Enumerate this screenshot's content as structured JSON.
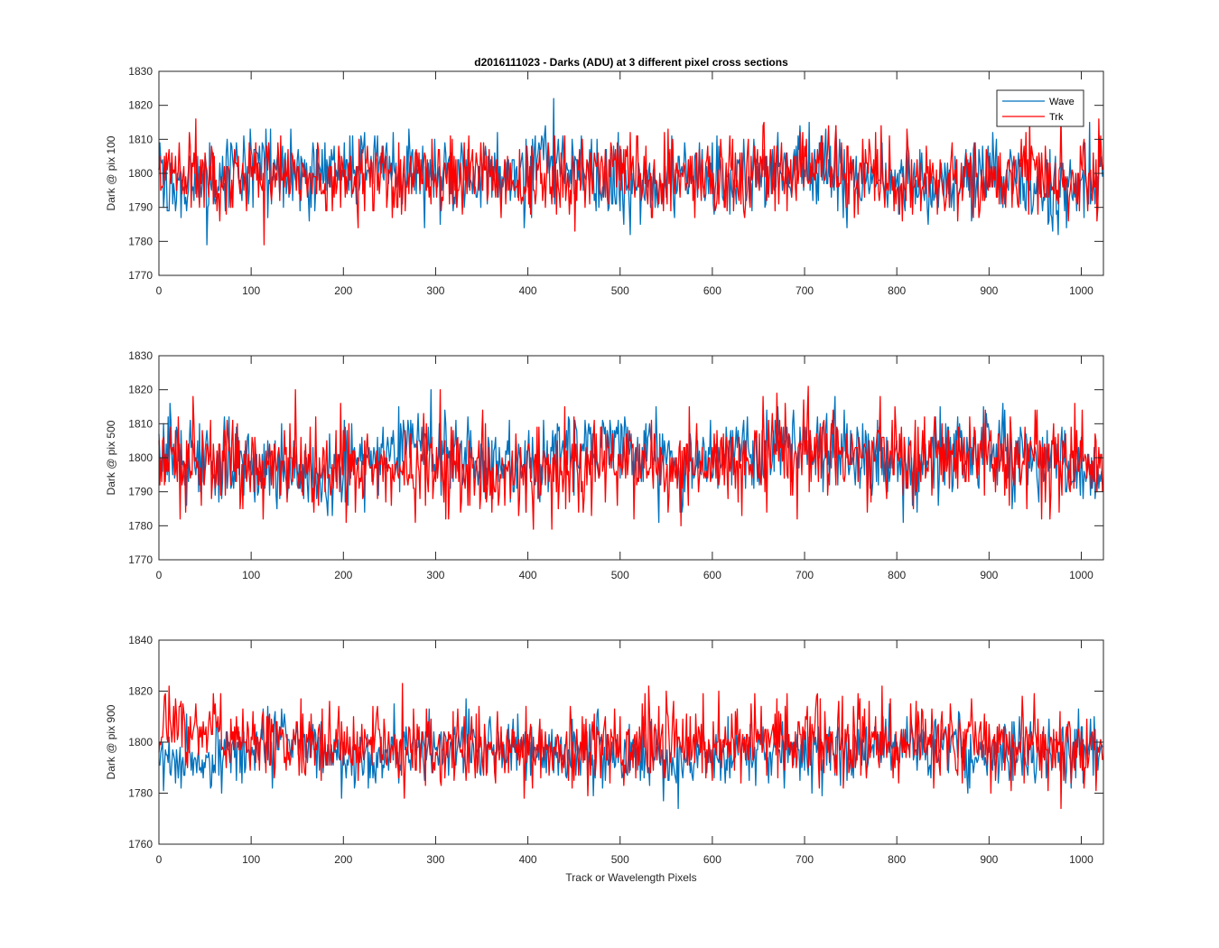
{
  "figure_title": "d2016111023 - Darks (ADU) at 3 different pixel cross sections",
  "xlabel": "Track or Wavelength Pixels",
  "legend": {
    "entries": [
      "Wave",
      "Trk"
    ],
    "placement": "top-right (panel 1)"
  },
  "colors": {
    "Wave": "#0072BD",
    "Trk": "#FF0000",
    "axis": "#262626"
  },
  "chart_data": [
    {
      "type": "line",
      "ylabel": "Dark @ pix 100",
      "xlim": [
        0,
        1024
      ],
      "ylim": [
        1770,
        1830
      ],
      "xticks": [
        0,
        100,
        200,
        300,
        400,
        500,
        600,
        700,
        800,
        900,
        1000
      ],
      "yticks": [
        1770,
        1780,
        1790,
        1800,
        1810,
        1820,
        1830
      ],
      "grid": false,
      "legend": "top-right",
      "n_points": 1024,
      "series": [
        {
          "name": "Wave",
          "mean": 1799,
          "range": [
            1779,
            1822
          ],
          "trend_x": [
            0,
            40,
            90,
            150,
            230,
            290,
            330,
            400,
            420,
            460,
            500,
            560,
            620,
            700,
            770,
            850,
            920,
            970,
            1024
          ],
          "trend_y": [
            1797,
            1795,
            1803,
            1800,
            1803,
            1800,
            1798,
            1800,
            1807,
            1801,
            1795,
            1796,
            1800,
            1802,
            1797,
            1797,
            1800,
            1794,
            1798
          ]
        },
        {
          "name": "Trk",
          "mean": 1799,
          "range": [
            1778,
            1822
          ],
          "trend_x": [
            0,
            100,
            200,
            300,
            400,
            500,
            600,
            700,
            800,
            900,
            1024
          ],
          "trend_y": [
            1801,
            1799,
            1799,
            1800,
            1797,
            1799,
            1800,
            1801,
            1799,
            1798,
            1799
          ]
        }
      ]
    },
    {
      "type": "line",
      "ylabel": "Dark @ pix 500",
      "xlim": [
        0,
        1024
      ],
      "ylim": [
        1770,
        1830
      ],
      "xticks": [
        0,
        100,
        200,
        300,
        400,
        500,
        600,
        700,
        800,
        900,
        1000
      ],
      "yticks": [
        1770,
        1780,
        1790,
        1800,
        1810,
        1820,
        1830
      ],
      "grid": false,
      "n_points": 1024,
      "series": [
        {
          "name": "Wave",
          "mean": 1800,
          "range": [
            1778,
            1822
          ],
          "trend_x": [
            0,
            30,
            90,
            170,
            230,
            280,
            330,
            390,
            450,
            490,
            560,
            620,
            690,
            760,
            820,
            880,
            940,
            1024
          ],
          "trend_y": [
            1803,
            1800,
            1798,
            1795,
            1800,
            1805,
            1799,
            1797,
            1802,
            1804,
            1797,
            1799,
            1805,
            1801,
            1797,
            1802,
            1800,
            1797
          ]
        },
        {
          "name": "Trk",
          "mean": 1799,
          "range": [
            1777,
            1826
          ],
          "trend_x": [
            0,
            100,
            200,
            300,
            400,
            500,
            600,
            670,
            760,
            900,
            1024
          ],
          "trend_y": [
            1802,
            1799,
            1798,
            1797,
            1796,
            1798,
            1798,
            1803,
            1801,
            1798,
            1800
          ]
        }
      ]
    },
    {
      "type": "line",
      "ylabel": "Dark @ pix 900",
      "xlim": [
        0,
        1024
      ],
      "ylim": [
        1760,
        1840
      ],
      "xticks": [
        0,
        100,
        200,
        300,
        400,
        500,
        600,
        700,
        800,
        900,
        1000
      ],
      "yticks": [
        1760,
        1780,
        1800,
        1820,
        1840
      ],
      "grid": false,
      "n_points": 1024,
      "series": [
        {
          "name": "Wave",
          "mean": 1796,
          "range": [
            1774,
            1821
          ],
          "trend_x": [
            0,
            50,
            140,
            210,
            300,
            400,
            500,
            560,
            640,
            700,
            830,
            900,
            1024
          ],
          "trend_y": [
            1792,
            1794,
            1802,
            1793,
            1797,
            1797,
            1796,
            1791,
            1797,
            1797,
            1799,
            1795,
            1797
          ]
        },
        {
          "name": "Trk",
          "mean": 1800,
          "range": [
            1774,
            1831
          ],
          "trend_x": [
            0,
            50,
            150,
            300,
            400,
            500,
            600,
            700,
            800,
            900,
            1024
          ],
          "trend_y": [
            1805,
            1805,
            1799,
            1797,
            1797,
            1798,
            1799,
            1801,
            1801,
            1800,
            1800
          ]
        }
      ]
    }
  ]
}
